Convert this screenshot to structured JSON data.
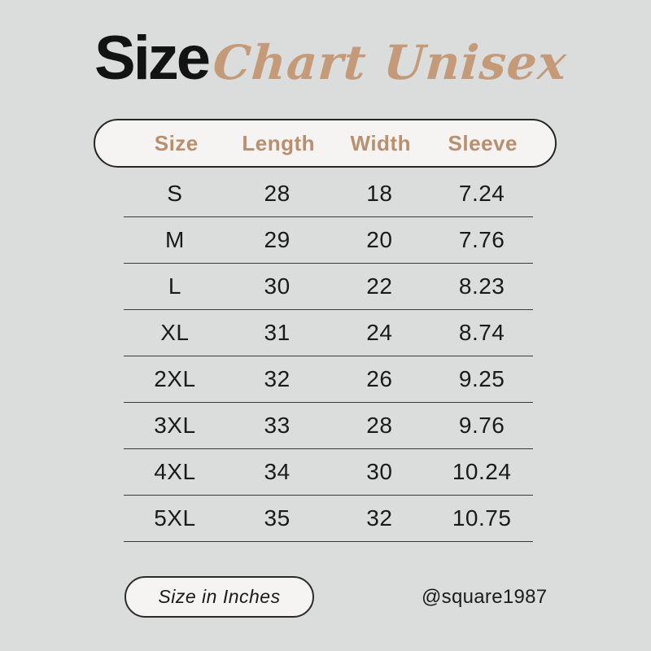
{
  "page": {
    "title_main": "Size",
    "title_script": "Chart Unisex"
  },
  "chart_data": {
    "type": "table",
    "title": "Size Chart Unisex",
    "unit": "Inches",
    "columns": [
      "Size",
      "Length",
      "Width",
      "Sleeve"
    ],
    "rows": [
      [
        "S",
        "28",
        "18",
        "7.24"
      ],
      [
        "M",
        "29",
        "20",
        "7.76"
      ],
      [
        "L",
        "30",
        "22",
        "8.23"
      ],
      [
        "XL",
        "31",
        "24",
        "8.74"
      ],
      [
        "2XL",
        "32",
        "26",
        "9.25"
      ],
      [
        "3XL",
        "33",
        "28",
        "9.76"
      ],
      [
        "4XL",
        "34",
        "30",
        "10.24"
      ],
      [
        "5XL",
        "35",
        "32",
        "10.75"
      ]
    ]
  },
  "footer": {
    "unit_label": "Size in Inches",
    "credit": "@square1987"
  },
  "colors": {
    "background": "#dbdcdc",
    "pill_background": "#f5f4f2",
    "pill_border": "#262626",
    "header_text": "#b98f70",
    "script_text": "#c49a78",
    "body_text": "#1a1a1a",
    "separator": "#3a3a3a"
  }
}
